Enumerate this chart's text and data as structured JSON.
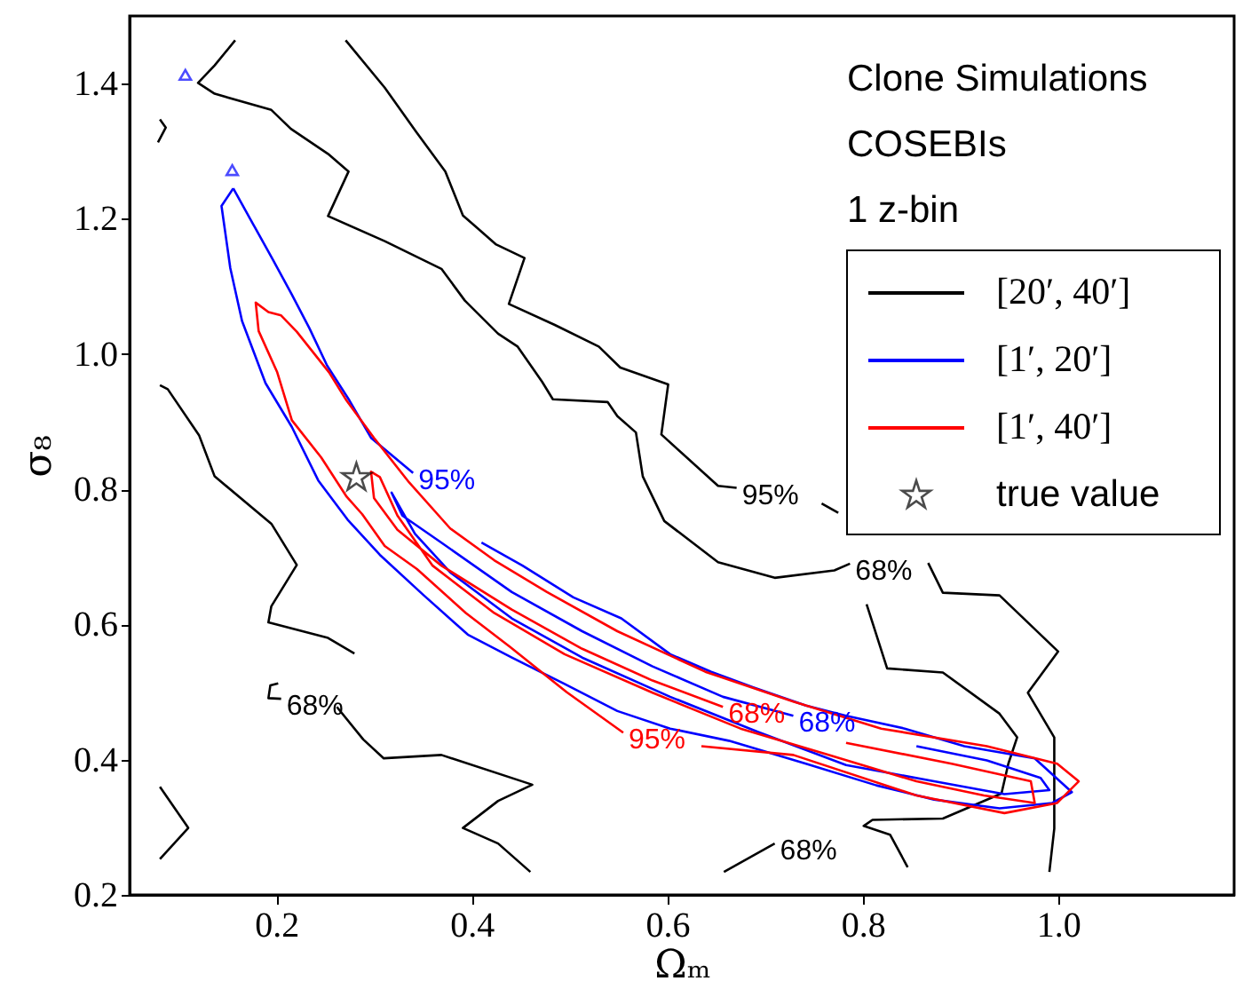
{
  "chart_data": {
    "type": "line",
    "xlabel": "Ωₘ",
    "ylabel": "σ₈",
    "xlim": [
      0.05,
      1.18
    ],
    "ylim": [
      0.2,
      1.5
    ],
    "xticks": [
      0.2,
      0.4,
      0.6,
      0.8,
      {
        "value": 1.0,
        "label": "1.0"
      }
    ],
    "yticks": [
      0.2,
      0.4,
      0.6,
      0.8,
      {
        "value": 1.0,
        "label": "1.0"
      },
      1.2,
      1.4
    ],
    "grid": false,
    "legend": "top right",
    "line_style": "solid",
    "series": [
      {
        "name": "[20′, 40′]",
        "color": "#000000",
        "x": [
          0.271,
          0.311,
          0.343,
          0.373,
          0.391,
          0.425,
          0.454,
          0.438,
          0.485,
          0.53,
          0.552,
          0.601,
          0.594,
          0.652,
          0.671
        ],
        "values": [
          1.464,
          1.394,
          1.329,
          1.27,
          1.205,
          1.162,
          1.142,
          1.074,
          1.043,
          1.011,
          0.98,
          0.955,
          0.881,
          0.805,
          0.802
        ]
      },
      {
        "color": "#000000",
        "x": [
          0.758,
          0.775
        ],
        "values": [
          0.779,
          0.765
        ]
      },
      {
        "color": "#000000",
        "x": [
          0.867,
          0.882,
          0.94,
          1.0,
          0.969,
          0.996,
          0.996,
          0.991
        ],
        "values": [
          0.691,
          0.647,
          0.643,
          0.56,
          0.499,
          0.433,
          0.298,
          0.234
        ]
      },
      {
        "color": "#000000",
        "x": [
          0.158,
          0.137,
          0.12,
          0.137,
          0.195,
          0.215,
          0.253,
          0.274,
          0.253,
          0.311,
          0.369,
          0.393,
          0.427,
          0.447,
          0.472,
          0.483,
          0.539,
          0.549,
          0.568,
          0.575,
          0.597,
          0.652,
          0.71,
          0.771,
          0.787
        ],
        "values": [
          1.464,
          1.427,
          1.401,
          1.385,
          1.361,
          1.333,
          1.296,
          1.27,
          1.204,
          1.167,
          1.126,
          1.079,
          1.03,
          1.011,
          0.959,
          0.933,
          0.929,
          0.908,
          0.884,
          0.819,
          0.753,
          0.692,
          0.669,
          0.68,
          0.69
        ]
      },
      {
        "color": "#000000",
        "x": [
          0.804,
          0.825,
          0.882,
          0.94,
          0.958,
          0.949,
          0.942,
          0.882,
          0.81,
          0.801,
          0.828,
          0.846
        ],
        "values": [
          0.63,
          0.535,
          0.529,
          0.468,
          0.433,
          0.394,
          0.35,
          0.313,
          0.311,
          0.302,
          0.289,
          0.241
        ]
      },
      {
        "color": "#000000",
        "x": [
          0.081,
          0.089,
          0.121,
          0.137,
          0.195,
          0.221,
          0.195,
          0.192,
          0.253,
          0.28
        ],
        "values": [
          0.954,
          0.948,
          0.88,
          0.819,
          0.749,
          0.688,
          0.627,
          0.603,
          0.58,
          0.557
        ]
      },
      {
        "color": "#000000",
        "x": [
          0.202,
          0.194,
          0.192,
          0.205
        ],
        "values": [
          0.513,
          0.51,
          0.491,
          0.49
        ]
      },
      {
        "color": "#000000",
        "x": [
          0.262,
          0.289,
          0.31,
          0.369,
          0.462,
          0.427,
          0.391,
          0.427,
          0.46
        ],
        "values": [
          0.478,
          0.43,
          0.402,
          0.407,
          0.363,
          0.339,
          0.299,
          0.276,
          0.234
        ]
      },
      {
        "color": "#000000",
        "x": [
          0.081,
          0.11,
          0.081
        ],
        "values": [
          0.36,
          0.299,
          0.253
        ]
      },
      {
        "color": "#000000",
        "x": [
          0.081,
          0.087,
          0.079
        ],
        "values": [
          1.347,
          1.335,
          1.313
        ]
      },
      {
        "color": "#000000",
        "x": [
          0.658,
          0.71
        ],
        "values": [
          0.234,
          0.276
        ]
      },
      {
        "color": "#0000ff",
        "x": [
          0.156,
          0.176,
          0.196,
          0.216,
          0.234,
          0.252,
          0.275,
          0.297,
          0.34
        ],
        "values": [
          1.245,
          1.193,
          1.141,
          1.088,
          1.038,
          0.983,
          0.931,
          0.876,
          0.824
        ]
      },
      {
        "name": "[1′, 20′]",
        "color": "#0000ff",
        "x": [
          0.41,
          0.452,
          0.504,
          0.553,
          0.603,
          0.645,
          0.688,
          0.742,
          0.783,
          0.843,
          0.904,
          0.976,
          1.014,
          0.994,
          0.94,
          0.873,
          0.814,
          0.742,
          0.663,
          0.603,
          0.549,
          0.495,
          0.441,
          0.396,
          0.351,
          0.306,
          0.273,
          0.243,
          0.216,
          0.189,
          0.165,
          0.153,
          0.144,
          0.156
        ],
        "values": [
          0.721,
          0.687,
          0.64,
          0.609,
          0.556,
          0.53,
          0.507,
          0.48,
          0.465,
          0.446,
          0.42,
          0.402,
          0.352,
          0.336,
          0.328,
          0.341,
          0.362,
          0.394,
          0.428,
          0.446,
          0.472,
          0.512,
          0.551,
          0.585,
          0.643,
          0.703,
          0.755,
          0.813,
          0.892,
          0.957,
          1.049,
          1.127,
          1.219,
          1.245
        ]
      },
      {
        "color": "#0000ff",
        "x": [
          0.855,
          0.927,
          0.982,
          0.991,
          0.945,
          0.873,
          0.783,
          0.693,
          0.603,
          0.513,
          0.441,
          0.378,
          0.342,
          0.318,
          0.329,
          0.369,
          0.441,
          0.513,
          0.585,
          0.657,
          0.729
        ],
        "values": [
          0.42,
          0.399,
          0.373,
          0.355,
          0.349,
          0.368,
          0.392,
          0.441,
          0.493,
          0.551,
          0.609,
          0.677,
          0.734,
          0.795,
          0.761,
          0.721,
          0.648,
          0.59,
          0.538,
          0.493,
          0.465
        ]
      },
      {
        "type": "scatter",
        "marker": "triangle",
        "color": "#0000ff",
        "x": [
          0.107,
          0.155
        ],
        "values": [
          1.413,
          1.272
        ]
      },
      {
        "name": "[1′, 40′]",
        "color": "#ff0000",
        "x": [
          0.635,
          0.729,
          0.855,
          0.945,
          0.999,
          1.021,
          0.999,
          0.927,
          0.819,
          0.729,
          0.639,
          0.549,
          0.477,
          0.423,
          0.378,
          0.336,
          0.3,
          0.272,
          0.254,
          0.221,
          0.205,
          0.192,
          0.179,
          0.182,
          0.201,
          0.216,
          0.246,
          0.272,
          0.288,
          0.311,
          0.344,
          0.394,
          0.439,
          0.497,
          0.555
        ],
        "values": [
          0.42,
          0.407,
          0.347,
          0.321,
          0.336,
          0.368,
          0.394,
          0.42,
          0.446,
          0.486,
          0.53,
          0.59,
          0.648,
          0.695,
          0.742,
          0.81,
          0.876,
          0.931,
          0.973,
          1.033,
          1.057,
          1.062,
          1.076,
          1.034,
          0.973,
          0.902,
          0.847,
          0.789,
          0.763,
          0.716,
          0.682,
          0.617,
          0.567,
          0.5,
          0.44
        ]
      },
      {
        "color": "#ff0000",
        "x": [
          0.783,
          0.891,
          0.972,
          0.976,
          0.924,
          0.855,
          0.765,
          0.675,
          0.585,
          0.495,
          0.423,
          0.36,
          0.324,
          0.306,
          0.297,
          0.3,
          0.324,
          0.369,
          0.441,
          0.513,
          0.585,
          0.657
        ],
        "values": [
          0.425,
          0.394,
          0.368,
          0.336,
          0.347,
          0.368,
          0.407,
          0.446,
          0.499,
          0.556,
          0.617,
          0.687,
          0.761,
          0.818,
          0.826,
          0.787,
          0.74,
          0.687,
          0.622,
          0.564,
          0.517,
          0.478
        ]
      },
      {
        "name": "true value",
        "type": "scatter",
        "marker": "star",
        "color": "#000000",
        "x": [
          0.282
        ],
        "values": [
          0.817
        ]
      }
    ],
    "annotations": [
      "Clone Simulations",
      "COSEBIs",
      "1 z-bin",
      {
        "text": "95%",
        "x": 0.671,
        "y": 0.802
      },
      {
        "text": "68%",
        "x": 0.787,
        "y": 0.69
      },
      {
        "text": "68%",
        "x": 0.205,
        "y": 0.49
      },
      {
        "text": "68%",
        "x": 0.71,
        "y": 0.276
      },
      {
        "text": "95%",
        "x": 0.34,
        "y": 0.824
      },
      {
        "text": "68%",
        "x": 0.729,
        "y": 0.465
      },
      {
        "text": "95%",
        "x": 0.555,
        "y": 0.44
      },
      {
        "text": "68%",
        "x": 0.657,
        "y": 0.478
      }
    ]
  }
}
